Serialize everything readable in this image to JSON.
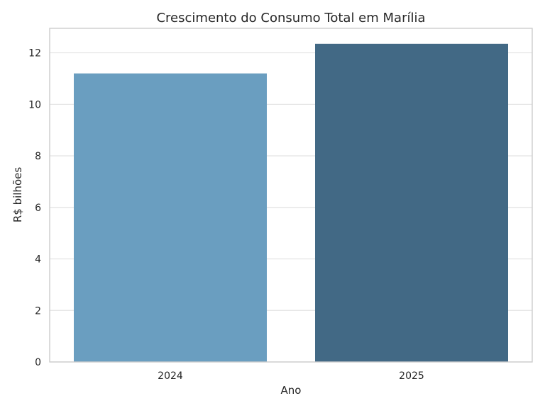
{
  "chart_data": {
    "type": "bar",
    "title": "Crescimento do Consumo Total em Marília",
    "xlabel": "Ano",
    "ylabel": "R$ bilhões",
    "categories": [
      "2024",
      "2025"
    ],
    "values": [
      11.2,
      12.35
    ],
    "colors": [
      "#6a9ec0",
      "#426985"
    ],
    "ylim": [
      0,
      12.95
    ],
    "yticks": [
      "0",
      "2",
      "4",
      "6",
      "8",
      "10",
      "12"
    ],
    "grid": true,
    "legend": "none"
  }
}
